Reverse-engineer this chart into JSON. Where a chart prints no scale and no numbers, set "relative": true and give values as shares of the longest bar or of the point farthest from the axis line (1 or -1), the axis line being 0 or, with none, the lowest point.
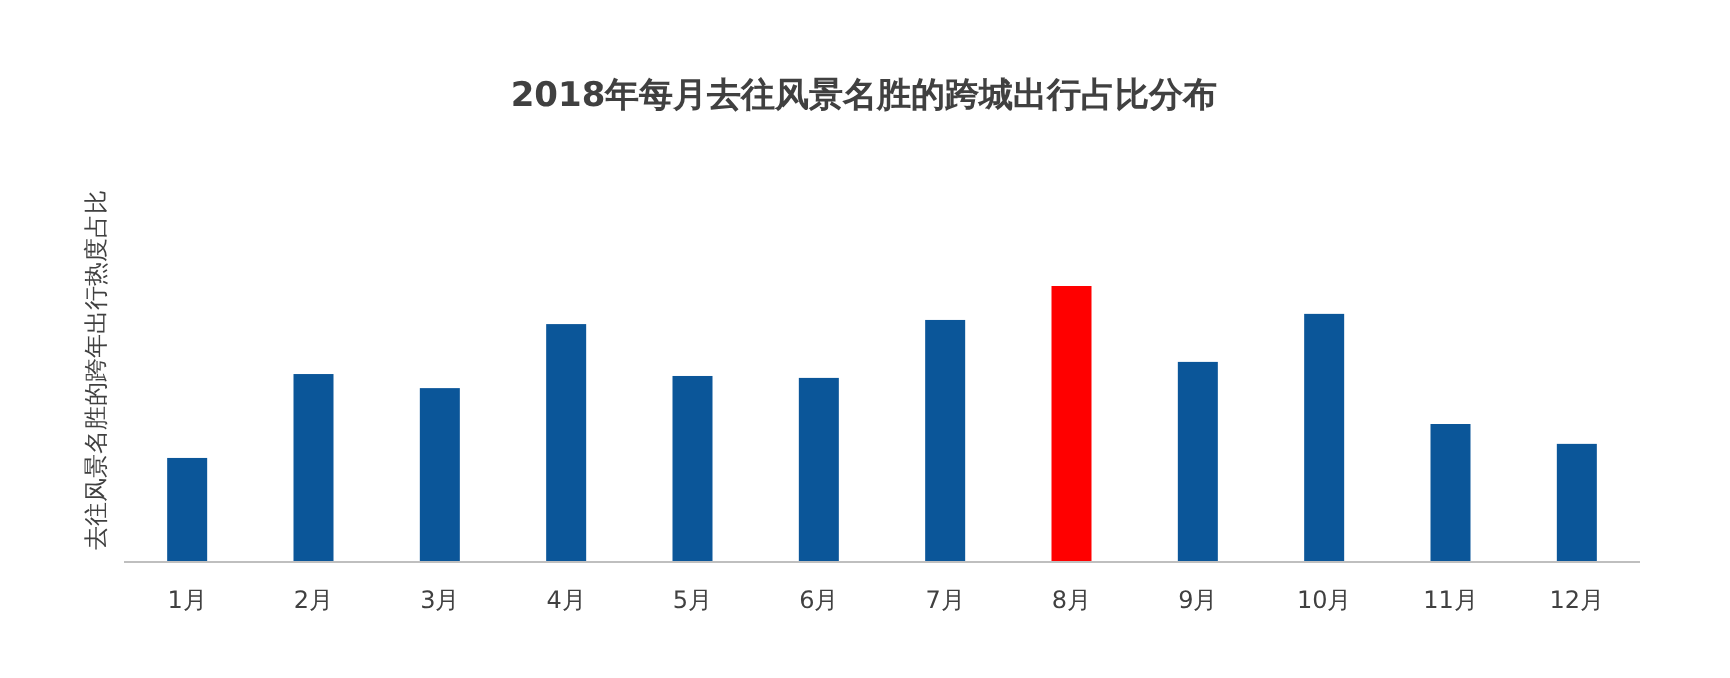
{
  "chart_data": {
    "type": "bar",
    "title": "2018年每月去往风景名胜的跨城出行占比分布",
    "ylabel": "去往风景名胜的跨年出行热度占比",
    "categories": [
      "1月",
      "2月",
      "3月",
      "4月",
      "5月",
      "6月",
      "7月",
      "8月",
      "9月",
      "10月",
      "11月",
      "12月"
    ],
    "values": [
      0.377,
      0.681,
      0.63,
      0.862,
      0.674,
      0.667,
      0.877,
      1,
      0.725,
      0.899,
      0.5,
      0.428
    ],
    "colors": [
      "#0b5699",
      "#0b5699",
      "#0b5699",
      "#0b5699",
      "#0b5699",
      "#0b5699",
      "#0b5699",
      "#ff0000",
      "#0b5699",
      "#0b5699",
      "#0b5699",
      "#0b5699"
    ],
    "relative": true
  }
}
